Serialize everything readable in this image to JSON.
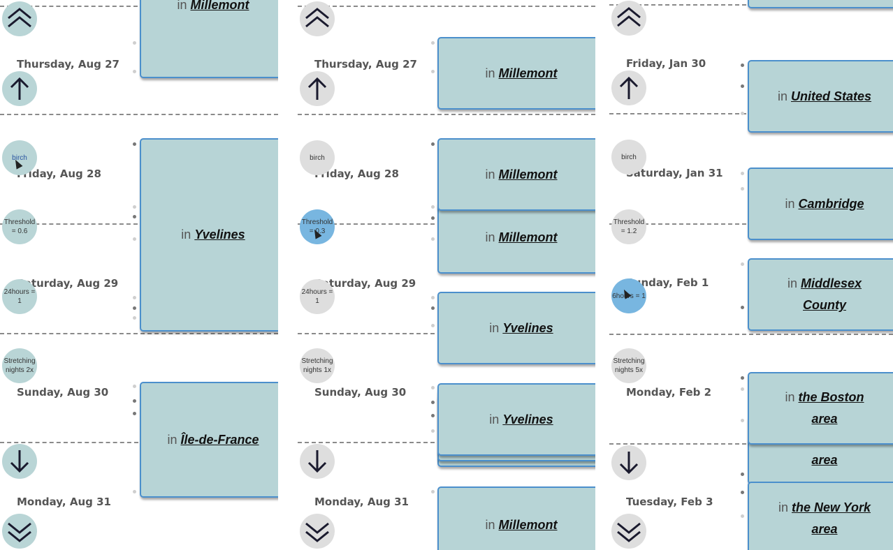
{
  "panels": [
    {
      "days": [
        "Thursday, Aug 27",
        "Friday, Aug 28",
        "Saturday, Aug 29",
        "Sunday, Aug 30",
        "Monday, Aug 31"
      ],
      "controls": {
        "birch": "birch",
        "threshold": "Threshold = 0.6",
        "hours": "24hours = 1",
        "stretch": "Stretching nights 2x"
      },
      "cards": [
        {
          "prefix": "in",
          "place": "Millemont"
        },
        {
          "prefix": "in",
          "place": "Yvelines"
        },
        {
          "prefix": "in",
          "place": "Île-de-France"
        }
      ]
    },
    {
      "days": [
        "Thursday, Aug 27",
        "Friday, Aug 28",
        "Saturday, Aug 29",
        "Sunday, Aug 30",
        "Monday, Aug 31"
      ],
      "controls": {
        "birch": "birch",
        "threshold": "Threshold = 0.3",
        "hours": "24hours = 1",
        "stretch": "Stretching nights 1x"
      },
      "cards": [
        {
          "prefix": "in",
          "place": "Millemont"
        },
        {
          "prefix": "in",
          "place": "Millemont"
        },
        {
          "prefix": "in",
          "place": "Millemont"
        },
        {
          "prefix": "in",
          "place": "Yvelines"
        },
        {
          "prefix": "in",
          "place": "Yvelines"
        },
        {
          "prefix": "in",
          "place": "Millemont"
        }
      ]
    },
    {
      "days": [
        "Friday, Jan 30",
        "Saturday, Jan 31",
        "Sunday, Feb 1",
        "Monday, Feb 2",
        "Tuesday, Feb 3"
      ],
      "controls": {
        "birch": "birch",
        "threshold": "Threshold = 1.2",
        "hours": "6hours = 1",
        "stretch": "Stretching nights 5x"
      },
      "cards": [
        {
          "prefix": "in",
          "place": "United States"
        },
        {
          "prefix": "in",
          "place": "Cambridge"
        },
        {
          "prefix": "in",
          "place": "Middlesex County"
        },
        {
          "prefix": "in",
          "place": "the Boston area"
        },
        {
          "prefix": "",
          "place": "area"
        },
        {
          "prefix": "in",
          "place": "the New York area"
        }
      ]
    }
  ],
  "icons": [
    "scroll-top-icon",
    "scroll-up-icon",
    "scroll-down-icon",
    "scroll-bottom-icon"
  ],
  "colors": {
    "card": "#b7d4d6",
    "card_border": "#4b8fcc",
    "active_control": "#78b6e0",
    "control": "#dedede"
  }
}
